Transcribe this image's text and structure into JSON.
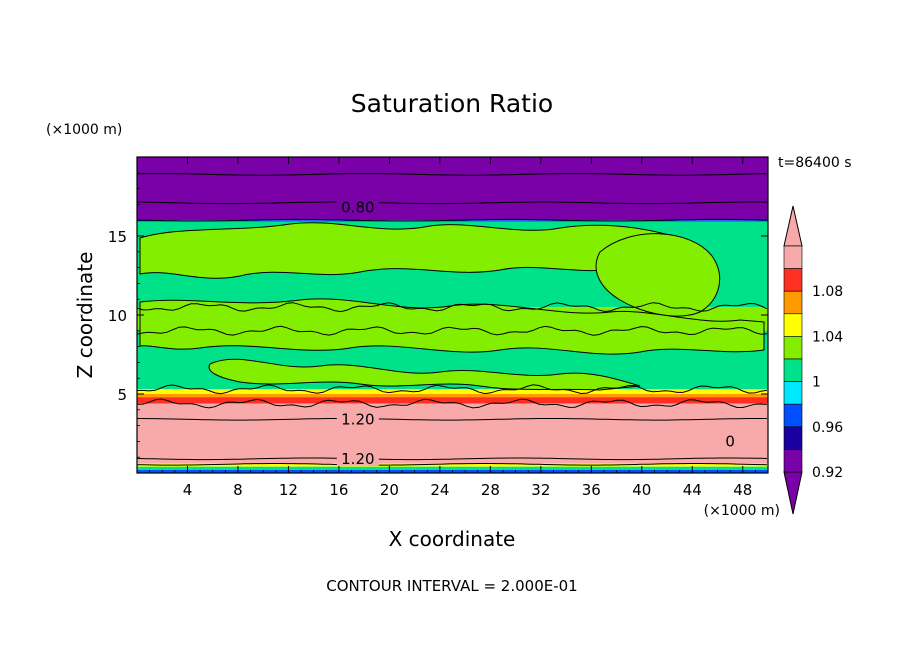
{
  "chart_data": {
    "type": "heatmap",
    "title": "Saturation Ratio",
    "xlabel": "X coordinate",
    "ylabel": "Z coordinate",
    "x_unit": "(×1000 m)",
    "y_unit": "(×1000 m)",
    "time_label": "t=86400 s",
    "footer": "CONTOUR INTERVAL = 2.000E-01",
    "xlim": [
      0,
      50
    ],
    "ylim": [
      0,
      20
    ],
    "x_ticks": [
      4,
      8,
      12,
      16,
      20,
      24,
      28,
      32,
      36,
      40,
      44,
      48
    ],
    "y_ticks": [
      5,
      10,
      15
    ],
    "contour_labels": [
      {
        "text": "0.80",
        "x": 17.5,
        "y": 16.8
      },
      {
        "text": "1.20",
        "x": 17.5,
        "y": 3.4
      },
      {
        "text": "1.20",
        "x": 17.5,
        "y": 0.9
      },
      {
        "text": "0",
        "x": 47,
        "y": 2.0
      }
    ],
    "bands": [
      {
        "from": 16.0,
        "to": 20.0,
        "level": "<0.90",
        "color": "#7a00a8"
      },
      {
        "from": 15.9,
        "to": 16.0,
        "level": "0.92-0.96",
        "color": "#0050ff"
      },
      {
        "from": 10.5,
        "to": 15.9,
        "level": "0.98-1.00",
        "color": "#00e28a"
      },
      {
        "from": 9.0,
        "to": 10.5,
        "level": "1.00-1.02",
        "color": "#84ee00"
      },
      {
        "from": 5.3,
        "to": 9.0,
        "level": "0.98-1.00",
        "color": "#00e28a"
      },
      {
        "from": 5.0,
        "to": 5.3,
        "level": "1.02-1.04",
        "color": "#ffff00"
      },
      {
        "from": 4.8,
        "to": 5.0,
        "level": "1.04-1.06",
        "color": "#ff9a00"
      },
      {
        "from": 4.4,
        "to": 4.8,
        "level": "1.08-1.10",
        "color": "#ff3020"
      },
      {
        "from": 0.6,
        "to": 4.4,
        "level": ">1.10",
        "color": "#f8aaaa"
      },
      {
        "from": 0.4,
        "to": 0.6,
        "level": "1.02-1.04",
        "color": "#ffff00"
      },
      {
        "from": 0.2,
        "to": 0.4,
        "level": "0.98-1.00",
        "color": "#00e28a"
      },
      {
        "from": 0.0,
        "to": 0.2,
        "level": "0.92-0.96",
        "color": "#0050ff"
      }
    ],
    "colorbar": {
      "levels": [
        0.92,
        0.94,
        0.96,
        0.98,
        1.0,
        1.02,
        1.04,
        1.06,
        1.08,
        1.1
      ],
      "tick_labels": [
        "0.92",
        "0.96",
        "1",
        "1.04",
        "1.08"
      ],
      "tick_values": [
        0.92,
        0.96,
        1.0,
        1.04,
        1.08
      ],
      "colors": [
        "#7a00a8",
        "#1a00a0",
        "#0050ff",
        "#00e8ff",
        "#00e28a",
        "#84ee00",
        "#ffff00",
        "#ff9a00",
        "#ff3020",
        "#f8aaaa"
      ],
      "under_color": "#7a00a8",
      "over_color": "#f8aaaa"
    }
  }
}
